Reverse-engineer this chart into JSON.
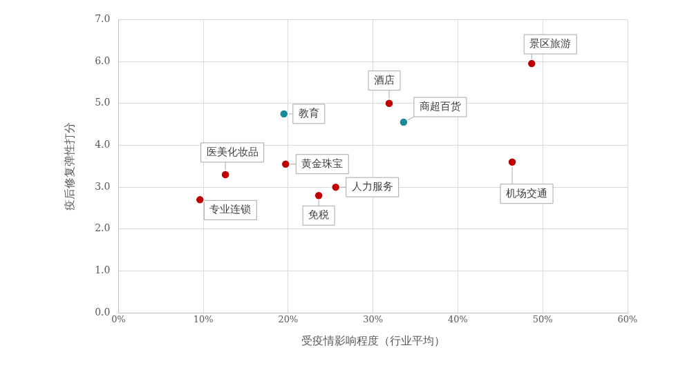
{
  "chart_data": {
    "type": "scatter",
    "xlabel": "受疫情影响程度（行业平均）",
    "ylabel": "疫后修复弹性打分",
    "series": [
      {
        "color": "#c00000",
        "x": [
          12.6,
          9.6,
          19.7,
          23.6,
          25.6,
          31.9,
          46.4,
          48.7
        ],
        "values": [
          3.3,
          2.7,
          3.55,
          2.8,
          3.0,
          5.0,
          3.6,
          5.95
        ]
      },
      {
        "color": "#1a8a9a",
        "x": [
          19.5,
          33.6
        ],
        "values": [
          4.75,
          4.55
        ]
      }
    ],
    "xlim": [
      0,
      60
    ],
    "xticks": [
      {
        "value": 0,
        "label": "0%"
      },
      {
        "value": 10,
        "label": "10%"
      },
      {
        "value": 20,
        "label": "20%"
      },
      {
        "value": 30,
        "label": "30%"
      },
      {
        "value": 40,
        "label": "40%"
      },
      {
        "value": 50,
        "label": "50%"
      },
      {
        "value": 60,
        "label": "60%"
      }
    ],
    "ylim": [
      0,
      7
    ],
    "yticks": [
      {
        "value": 0,
        "label": "0.0"
      },
      {
        "value": 1,
        "label": "1.0"
      },
      {
        "value": 2,
        "label": "2.0"
      },
      {
        "value": 3,
        "label": "3.0"
      },
      {
        "value": 4,
        "label": "4.0"
      },
      {
        "value": 5,
        "label": "5.0"
      },
      {
        "value": 6,
        "label": "6.0"
      },
      {
        "value": 7,
        "label": "7.0"
      }
    ],
    "annotations": [
      {
        "text": "教育",
        "x": 19.5,
        "y": 4.75
      },
      {
        "text": "医美化妆品",
        "x": 12.6,
        "y": 3.3
      },
      {
        "text": "专业连锁",
        "x": 9.6,
        "y": 2.7
      },
      {
        "text": "黄金珠宝",
        "x": 19.7,
        "y": 3.55
      },
      {
        "text": "免税",
        "x": 23.6,
        "y": 2.8
      },
      {
        "text": "人力服务",
        "x": 25.6,
        "y": 3.0
      },
      {
        "text": "酒店",
        "x": 31.9,
        "y": 5.0
      },
      {
        "text": "商超百货",
        "x": 33.6,
        "y": 4.55
      },
      {
        "text": "机场交通",
        "x": 46.4,
        "y": 3.6
      },
      {
        "text": "景区旅游",
        "x": 48.7,
        "y": 5.95
      }
    ],
    "grid": true,
    "legend": false,
    "marker": "circle"
  }
}
